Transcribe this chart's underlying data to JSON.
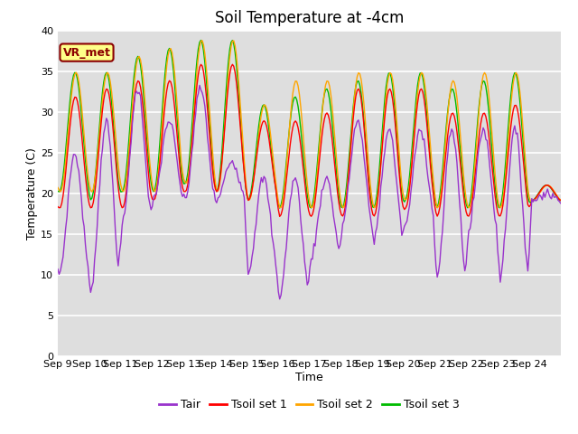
{
  "title": "Soil Temperature at -4cm",
  "xlabel": "Time",
  "ylabel": "Temperature (C)",
  "ylim": [
    0,
    40
  ],
  "yticks": [
    0,
    5,
    10,
    15,
    20,
    25,
    30,
    35,
    40
  ],
  "x_labels": [
    "Sep 9",
    "Sep 10",
    "Sep 11",
    "Sep 12",
    "Sep 13",
    "Sep 14",
    "Sep 15",
    "Sep 16",
    "Sep 17",
    "Sep 18",
    "Sep 19",
    "Sep 20",
    "Sep 21",
    "Sep 22",
    "Sep 23",
    "Sep 24"
  ],
  "legend_labels": [
    "Tair",
    "Tsoil set 1",
    "Tsoil set 2",
    "Tsoil set 3"
  ],
  "line_colors": [
    "#9933CC",
    "#FF0000",
    "#FFA500",
    "#00BB00"
  ],
  "annotation_text": "VR_met",
  "annotation_color": "#8B0000",
  "annotation_bg": "#FFFF88",
  "bg_color": "#DEDEDE",
  "grid_color": "#FFFFFF",
  "title_fontsize": 12,
  "axis_fontsize": 9,
  "tick_fontsize": 8,
  "legend_fontsize": 9
}
